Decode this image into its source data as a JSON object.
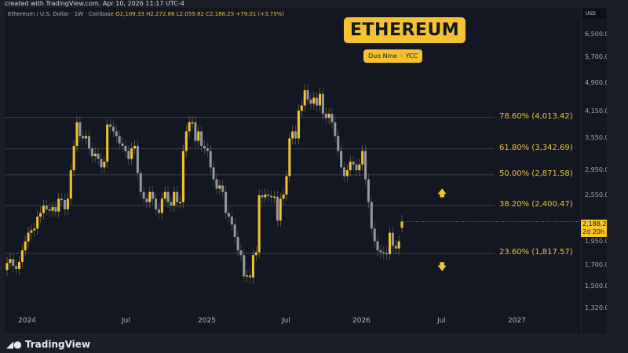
{
  "top_note": "created with TradingView.com, Apr 10, 2026 11:17 UTC-4",
  "legend": {
    "symbol": "Ethereum / U.S. Dollar · 1W · Coinbase",
    "open": "O2,109.33",
    "high": "H2,272.86",
    "low": "L2,059.82",
    "close": "C2,188.25",
    "change": "+79.01 (+3.75%)"
  },
  "banner": {
    "title": "ETHEREUM",
    "subtitle_left": "Duo Nine",
    "subtitle_right": "YCC",
    "icon": "lightning-bolt-icon"
  },
  "price_axis": {
    "currency": "USD",
    "scale": "log",
    "ticks": [
      "6,500.00",
      "5,700.00",
      "4,900.00",
      "4,150.00",
      "3,550.00",
      "2,950.00",
      "2,550.00",
      "1,950.00",
      "1,700.00",
      "1,500.00",
      "1,320.00"
    ],
    "tick_values": [
      6500,
      5700,
      4900,
      4150,
      3550,
      2950,
      2550,
      1950,
      1700,
      1500,
      1320
    ]
  },
  "current_price": {
    "value": "2,188.25",
    "countdown": "2d 20h"
  },
  "date_axis": [
    "2024",
    "Jul",
    "2025",
    "Jul",
    "2026",
    "Jul",
    "2027"
  ],
  "fib_levels": [
    {
      "label": "78.60% (4,013.42)",
      "value": 4013.42
    },
    {
      "label": "61.80% (3,342.69)",
      "value": 3342.69
    },
    {
      "label": "50.00% (2,871.58)",
      "value": 2871.58
    },
    {
      "label": "38.20% (2,400.47)",
      "value": 2400.47
    },
    {
      "label": "23.60% (1,817.57)",
      "value": 1817.57
    }
  ],
  "arrows": [
    {
      "icon": "arrow-up-icon",
      "symbol": "🡅"
    },
    {
      "icon": "arrow-down-icon",
      "symbol": "🡇"
    }
  ],
  "colors": {
    "up": "#f5c331",
    "down": "#9598a1",
    "background": "#131722",
    "fib_line": "#3b3f4b"
  },
  "chart_data": {
    "type": "candlestick",
    "interval": "1W",
    "first_open": 1650,
    "closes": [
      1720,
      1760,
      1690,
      1660,
      1730,
      1850,
      1950,
      2050,
      2080,
      2100,
      2250,
      2300,
      2400,
      2350,
      2330,
      2380,
      2320,
      2500,
      2480,
      2350,
      2500,
      2950,
      3400,
      3900,
      3600,
      3550,
      3600,
      3350,
      3200,
      3250,
      3150,
      3000,
      3100,
      3850,
      3800,
      3700,
      3600,
      3450,
      3400,
      3300,
      3150,
      3350,
      3400,
      2900,
      2600,
      2500,
      2450,
      2600,
      2500,
      2350,
      2300,
      2500,
      2600,
      2450,
      2400,
      2600,
      2450,
      2450,
      3300,
      3700,
      3900,
      3900,
      3500,
      3700,
      3400,
      3350,
      3300,
      3000,
      2800,
      2650,
      2700,
      2600,
      2300,
      2250,
      2150,
      2000,
      1850,
      1800,
      1590,
      1600,
      1580,
      1800,
      1830,
      2550,
      2520,
      2560,
      2540,
      2520,
      2530,
      2200,
      2500,
      2560,
      2850,
      3550,
      3700,
      3550,
      4170,
      4300,
      4700,
      4450,
      4350,
      4500,
      4300,
      4600,
      4100,
      4000,
      4100,
      3900,
      3600,
      3300,
      3000,
      2850,
      2950,
      3100,
      3050,
      2950,
      3050,
      3300,
      2800,
      2450,
      2100,
      1950,
      1850,
      1830,
      1820,
      1810,
      2050,
      1900,
      1870,
      1950,
      2188.25
    ],
    "last_candle": {
      "open": 2109.33,
      "high": 2272.86,
      "low": 2059.82,
      "close": 2188.25
    },
    "ylim": [
      1250,
      7000
    ]
  },
  "footer": {
    "logo_text": "TradingView"
  }
}
